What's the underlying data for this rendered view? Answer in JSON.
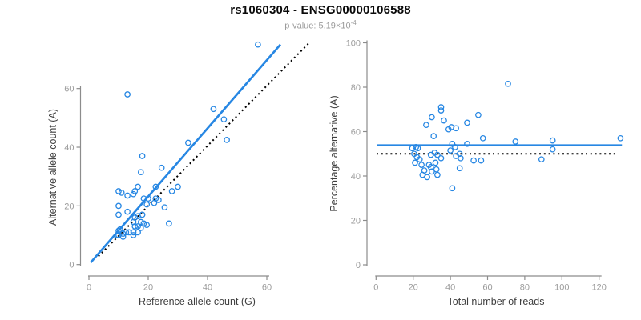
{
  "header": {
    "title": "rs1060304 - ENSG00000106588",
    "pvalue_text": "p-value: 5.19×10",
    "pvalue_exponent": "-4"
  },
  "colors": {
    "accent_blue": "#2787e3",
    "identity_black": "#000000",
    "axis_line": "#8c8c8c",
    "tick_label": "#9c9c9c",
    "axis_title": "#3f3f3f",
    "title": "#0a0a0a",
    "subtitle": "#9b9b9b",
    "background": "#ffffff"
  },
  "chart_data": [
    {
      "type": "scatter",
      "panel": "left",
      "title": "",
      "xlabel": "Reference allele count (G)",
      "ylabel": "Alternative allele count (A)",
      "xticks": [
        0,
        20,
        40,
        60
      ],
      "yticks": [
        0,
        20,
        40,
        60
      ],
      "xlim": [
        0,
        64
      ],
      "ylim": [
        0,
        76
      ],
      "grid": false,
      "legend": "none",
      "marker": "open-circle",
      "points": [
        [
          9.5,
          10
        ],
        [
          10,
          10
        ],
        [
          11.5,
          9.5
        ],
        [
          10,
          11.5
        ],
        [
          11.5,
          10.5
        ],
        [
          10.5,
          12
        ],
        [
          12.5,
          11
        ],
        [
          13.5,
          11
        ],
        [
          15,
          10
        ],
        [
          15,
          11
        ],
        [
          10,
          17
        ],
        [
          16.5,
          11
        ],
        [
          15.5,
          13
        ],
        [
          15,
          14.5
        ],
        [
          16.5,
          13
        ],
        [
          17.5,
          12.5
        ],
        [
          10,
          20
        ],
        [
          13,
          18
        ],
        [
          15.5,
          16
        ],
        [
          17.5,
          14.5
        ],
        [
          18.5,
          14
        ],
        [
          16.5,
          16.5
        ],
        [
          19.5,
          13.5
        ],
        [
          10,
          25
        ],
        [
          11,
          24.5
        ],
        [
          18,
          17
        ],
        [
          13,
          23.5
        ],
        [
          15,
          24
        ],
        [
          19.5,
          20.5
        ],
        [
          15.5,
          25
        ],
        [
          18.5,
          22.5
        ],
        [
          27,
          14
        ],
        [
          20,
          22.5
        ],
        [
          16.5,
          26.5
        ],
        [
          22,
          21
        ],
        [
          22.5,
          22.5
        ],
        [
          25.5,
          19.5
        ],
        [
          23.5,
          22
        ],
        [
          17.5,
          31.5
        ],
        [
          22.5,
          26.5
        ],
        [
          28,
          25
        ],
        [
          18,
          37
        ],
        [
          30,
          26.5
        ],
        [
          24.5,
          33
        ],
        [
          13,
          58
        ],
        [
          33.5,
          41.5
        ],
        [
          46.5,
          42.5
        ],
        [
          42,
          53
        ],
        [
          45.5,
          49.5
        ],
        [
          57,
          75
        ]
      ],
      "lines": [
        {
          "name": "fit-line",
          "role": "regression",
          "color": "accent",
          "width": 2.7,
          "dash": "",
          "x1": 0.6,
          "y1": 0.7,
          "x2": 64.6,
          "y2": 75.0
        },
        {
          "name": "identity-line",
          "role": "y-equals-x",
          "color": "#000000",
          "width": 2,
          "dash": "2 3.8",
          "x1": 3.2,
          "y1": 2.8,
          "x2": 74.2,
          "y2": 75.5
        }
      ]
    },
    {
      "type": "scatter",
      "panel": "right",
      "title": "",
      "xlabel": "Total number of reads",
      "ylabel": "Percentage alternative (A)",
      "xticks": [
        0,
        20,
        40,
        60,
        80,
        100,
        120
      ],
      "yticks": [
        0,
        20,
        40,
        60,
        80,
        100
      ],
      "xlim": [
        0,
        133
      ],
      "ylim": [
        0,
        100
      ],
      "grid": false,
      "legend": "none",
      "marker": "open-circle",
      "points": [
        [
          19.5,
          52.5
        ],
        [
          20.5,
          50
        ],
        [
          21,
          46
        ],
        [
          21.5,
          53
        ],
        [
          22,
          48.5
        ],
        [
          22.5,
          52.5
        ],
        [
          23.5,
          47.5
        ],
        [
          24.5,
          45
        ],
        [
          25,
          40.5
        ],
        [
          26,
          42.5
        ],
        [
          27,
          63
        ],
        [
          27.5,
          39.5
        ],
        [
          28.5,
          45
        ],
        [
          29.5,
          49.5
        ],
        [
          29.5,
          44
        ],
        [
          30,
          42
        ],
        [
          30,
          66.5
        ],
        [
          31,
          58
        ],
        [
          31.5,
          50.5
        ],
        [
          32,
          46
        ],
        [
          32.5,
          43
        ],
        [
          33,
          49.5
        ],
        [
          33,
          40.5
        ],
        [
          35,
          71
        ],
        [
          35,
          69.5
        ],
        [
          35,
          48
        ],
        [
          36.5,
          65
        ],
        [
          39,
          61
        ],
        [
          40,
          51.5
        ],
        [
          40.5,
          62
        ],
        [
          41,
          54.5
        ],
        [
          41,
          34.5
        ],
        [
          42.5,
          53
        ],
        [
          43,
          61.5
        ],
        [
          43,
          49
        ],
        [
          45,
          50
        ],
        [
          45,
          43.5
        ],
        [
          45.5,
          48
        ],
        [
          49,
          64
        ],
        [
          49,
          54.5
        ],
        [
          52.5,
          47
        ],
        [
          55,
          67.5
        ],
        [
          56.5,
          47
        ],
        [
          57.5,
          57
        ],
        [
          71,
          81.5
        ],
        [
          75,
          55.5
        ],
        [
          89,
          47.5
        ],
        [
          95,
          56
        ],
        [
          95,
          52
        ],
        [
          131.5,
          57
        ]
      ],
      "lines": [
        {
          "name": "fit-line",
          "role": "mean-percentage",
          "color": "accent",
          "width": 2.7,
          "dash": "",
          "x1": 0.5,
          "y1": 53.8,
          "x2": 132.3,
          "y2": 53.8
        },
        {
          "name": "null-line",
          "role": "fifty-percent",
          "color": "#000000",
          "width": 2,
          "dash": "2 3.8",
          "x1": 0.3,
          "y1": 50,
          "x2": 129.5,
          "y2": 50
        }
      ]
    }
  ]
}
